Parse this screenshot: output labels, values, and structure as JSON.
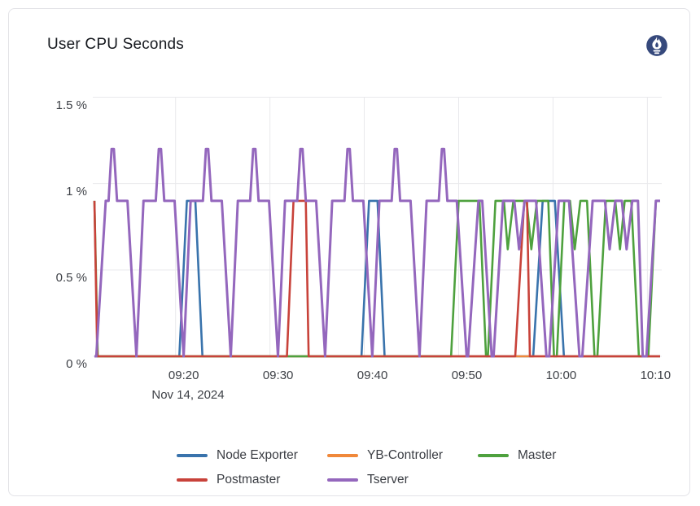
{
  "card": {
    "title": "User CPU Seconds"
  },
  "icons": {
    "logo": "prometheus-flame",
    "logo_color": "#36497c",
    "logo_flame_color": "#ffffff"
  },
  "colors": {
    "grid": "#e9e9ec",
    "tick_text": "#3d4046",
    "title_text": "#15181e",
    "card_border": "#e3e3e7"
  },
  "chart_data": {
    "type": "line",
    "title": "User CPU Seconds",
    "xlabel": "",
    "ylabel": "",
    "grid": true,
    "legend_position": "bottom-center",
    "x_axis": {
      "date_label": "Nov 14, 2024",
      "base_time": "09:10",
      "domain_minutes": [
        1.4,
        61.35
      ],
      "ticks": [
        {
          "label": "09:20",
          "t": 10
        },
        {
          "label": "09:30",
          "t": 20
        },
        {
          "label": "09:40",
          "t": 30
        },
        {
          "label": "09:50",
          "t": 40
        },
        {
          "label": "10:00",
          "t": 50
        },
        {
          "label": "10:10",
          "t": 60
        }
      ]
    },
    "y_axis": {
      "unit": "%",
      "max": 1.5,
      "ticks": [
        {
          "label": "0 %",
          "v": 0
        },
        {
          "label": "0.5 %",
          "v": 0.5
        },
        {
          "label": "1 %",
          "v": 1
        },
        {
          "label": "1.5 %",
          "v": 1.5
        }
      ]
    },
    "legend": [
      {
        "name": "Node Exporter",
        "color": "#3973ac"
      },
      {
        "name": "YB-Controller",
        "color": "#f0883a"
      },
      {
        "name": "Master",
        "color": "#4ea13e"
      },
      {
        "name": "Postmaster",
        "color": "#c8423a"
      },
      {
        "name": "Tserver",
        "color": "#9467bd"
      }
    ],
    "series": [
      {
        "name": "Node Exporter",
        "color": "#3973ac",
        "width": 2.6,
        "points": [
          [
            1.4,
            0
          ],
          [
            10.4,
            0
          ],
          [
            11.2,
            0.9
          ],
          [
            12.1,
            0.9
          ],
          [
            12.85,
            0
          ],
          [
            29.7,
            0
          ],
          [
            30.5,
            0.9
          ],
          [
            31.4,
            0.9
          ],
          [
            32.15,
            0
          ],
          [
            47.9,
            0
          ],
          [
            48.9,
            0.9
          ],
          [
            50.2,
            0.9
          ],
          [
            51.15,
            0
          ],
          [
            61.35,
            0
          ]
        ]
      },
      {
        "name": "YB-Controller",
        "color": "#f0883a",
        "width": 2.6,
        "points": [
          [
            1.4,
            0
          ],
          [
            61.35,
            0
          ]
        ]
      },
      {
        "name": "Master",
        "color": "#4ea13e",
        "width": 2.6,
        "points": [
          [
            1.4,
            0.9
          ],
          [
            1.75,
            0
          ],
          [
            39.2,
            0
          ],
          [
            40.0,
            0.9
          ],
          [
            42.2,
            0.9
          ],
          [
            42.9,
            0
          ],
          [
            43.1,
            0
          ],
          [
            43.9,
            0.9
          ],
          [
            44.8,
            0.9
          ],
          [
            45.2,
            0.62
          ],
          [
            45.8,
            0.9
          ],
          [
            47.2,
            0.9
          ],
          [
            47.7,
            0.62
          ],
          [
            48.3,
            0.9
          ],
          [
            49.5,
            0.9
          ],
          [
            50.1,
            0
          ],
          [
            50.4,
            0
          ],
          [
            51.2,
            0.9
          ],
          [
            51.8,
            0.9
          ],
          [
            52.3,
            0.62
          ],
          [
            52.9,
            0.9
          ],
          [
            53.6,
            0.9
          ],
          [
            54.4,
            0
          ],
          [
            54.7,
            0
          ],
          [
            55.6,
            0.9
          ],
          [
            56.6,
            0.9
          ],
          [
            57.1,
            0.62
          ],
          [
            57.6,
            0.9
          ],
          [
            58.3,
            0.9
          ],
          [
            59.1,
            0
          ],
          [
            60.1,
            0
          ],
          [
            60.9,
            0.9
          ],
          [
            61.35,
            0.9
          ]
        ]
      },
      {
        "name": "Postmaster",
        "color": "#c8423a",
        "width": 2.6,
        "points": [
          [
            1.4,
            0.9
          ],
          [
            1.7,
            0
          ],
          [
            21.8,
            0
          ],
          [
            22.5,
            0.9
          ],
          [
            23.8,
            0.9
          ],
          [
            24.1,
            0
          ],
          [
            46.0,
            0
          ],
          [
            46.95,
            0.9
          ],
          [
            47.25,
            0.9
          ],
          [
            47.55,
            0
          ],
          [
            61.35,
            0
          ]
        ]
      },
      {
        "name": "Tserver",
        "color": "#9467bd",
        "width": 3,
        "points": [
          [
            1.4,
            0
          ],
          [
            1.6,
            0
          ],
          [
            2.6,
            0.9
          ],
          [
            2.9,
            0.9
          ],
          [
            3.22,
            1.2
          ],
          [
            3.46,
            1.2
          ],
          [
            3.8,
            0.9
          ],
          [
            4.9,
            0.9
          ],
          [
            5.85,
            0
          ],
          [
            6.6,
            0.9
          ],
          [
            7.9,
            0.9
          ],
          [
            8.22,
            1.2
          ],
          [
            8.46,
            1.2
          ],
          [
            8.8,
            0.9
          ],
          [
            9.9,
            0.9
          ],
          [
            10.85,
            0
          ],
          [
            11.6,
            0.9
          ],
          [
            12.9,
            0.9
          ],
          [
            13.22,
            1.2
          ],
          [
            13.46,
            1.2
          ],
          [
            13.8,
            0.9
          ],
          [
            14.9,
            0.9
          ],
          [
            15.85,
            0
          ],
          [
            16.6,
            0.9
          ],
          [
            17.9,
            0.9
          ],
          [
            18.22,
            1.2
          ],
          [
            18.46,
            1.2
          ],
          [
            18.8,
            0.9
          ],
          [
            19.9,
            0.9
          ],
          [
            20.85,
            0
          ],
          [
            21.6,
            0.9
          ],
          [
            22.9,
            0.9
          ],
          [
            23.22,
            1.2
          ],
          [
            23.46,
            1.2
          ],
          [
            23.8,
            0.9
          ],
          [
            24.9,
            0.9
          ],
          [
            25.85,
            0
          ],
          [
            26.6,
            0.9
          ],
          [
            27.9,
            0.9
          ],
          [
            28.22,
            1.2
          ],
          [
            28.46,
            1.2
          ],
          [
            28.8,
            0.9
          ],
          [
            29.9,
            0.9
          ],
          [
            30.85,
            0
          ],
          [
            31.6,
            0.9
          ],
          [
            32.9,
            0.9
          ],
          [
            33.22,
            1.2
          ],
          [
            33.46,
            1.2
          ],
          [
            33.8,
            0.9
          ],
          [
            34.9,
            0.9
          ],
          [
            35.85,
            0
          ],
          [
            36.6,
            0.9
          ],
          [
            37.9,
            0.9
          ],
          [
            38.22,
            1.2
          ],
          [
            38.46,
            1.2
          ],
          [
            38.8,
            0.9
          ],
          [
            39.8,
            0.9
          ],
          [
            40.85,
            0
          ],
          [
            41.0,
            0
          ],
          [
            42.1,
            0.9
          ],
          [
            42.5,
            0.9
          ],
          [
            43.5,
            0
          ],
          [
            43.7,
            0
          ],
          [
            44.7,
            0.9
          ],
          [
            45.9,
            0.9
          ],
          [
            46.4,
            0.62
          ],
          [
            47.0,
            0.9
          ],
          [
            48.2,
            0.9
          ],
          [
            49.3,
            0
          ],
          [
            49.6,
            0
          ],
          [
            50.6,
            0.9
          ],
          [
            51.7,
            0.9
          ],
          [
            52.8,
            0
          ],
          [
            53.1,
            0
          ],
          [
            54.2,
            0.9
          ],
          [
            55.5,
            0.9
          ],
          [
            56.0,
            0.62
          ],
          [
            56.6,
            0.9
          ],
          [
            57.3,
            0.9
          ],
          [
            57.8,
            0.62
          ],
          [
            58.4,
            0.9
          ],
          [
            59.0,
            0.9
          ],
          [
            59.5,
            0
          ],
          [
            59.9,
            0
          ],
          [
            60.9,
            0.9
          ],
          [
            61.35,
            0.9
          ]
        ]
      }
    ]
  }
}
